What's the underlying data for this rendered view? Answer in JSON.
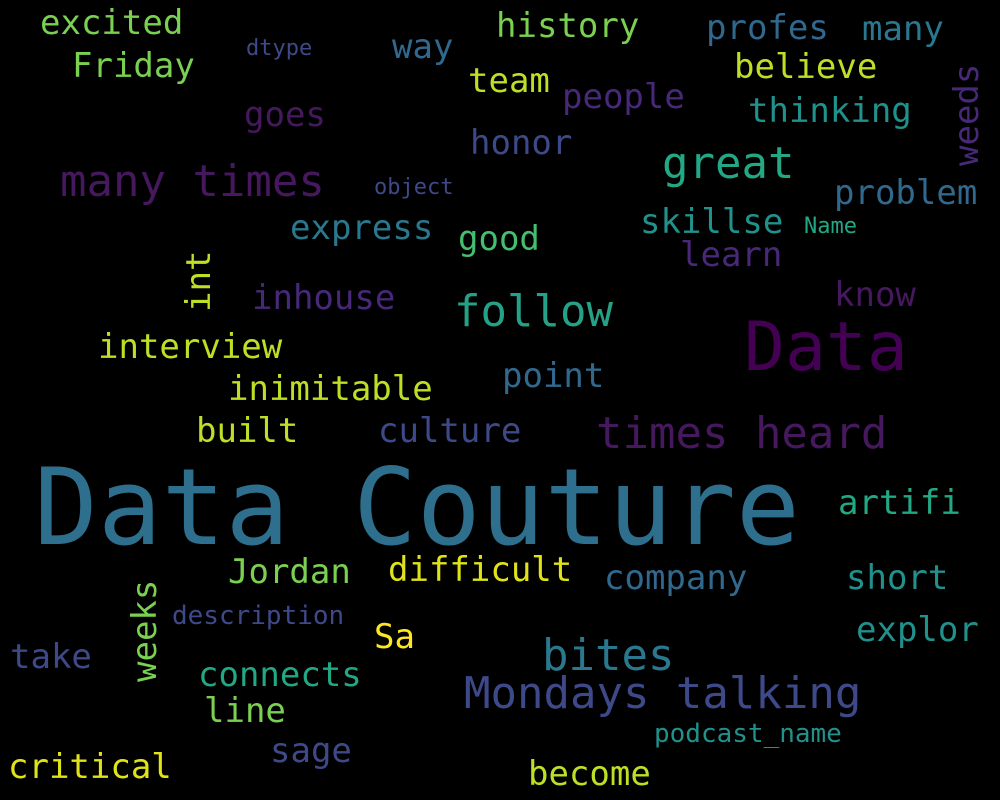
{
  "colors": {
    "background": "#000000",
    "teal_dark": "#2e6f8e",
    "teal": "#2a788e",
    "teal_light": "#21918c",
    "green": "#22a884",
    "green_light": "#44bf70",
    "lime": "#7ad151",
    "yellow_green": "#bddf26",
    "yellow": "#fde725",
    "purple_dark": "#440154",
    "purple": "#482878",
    "indigo": "#3e4989",
    "blue": "#31688e"
  },
  "words": {
    "data_couture": "Data Couture",
    "data": "Data",
    "mondays_talking": "Mondays talking",
    "many_times": "many times",
    "times_heard": "times heard",
    "great": "great",
    "follow": "follow",
    "bites": "bites",
    "history": "history",
    "profes": "profes",
    "many": "many",
    "excited": "excited",
    "friday": "Friday",
    "dtype": "dtype",
    "way": "way",
    "team": "team",
    "believe": "believe",
    "people": "people",
    "goes": "goes",
    "thinking": "thinking",
    "weeds": "weeds",
    "honor": "honor",
    "problem": "problem",
    "object": "object",
    "express": "express",
    "good": "good",
    "skillse": "skillse",
    "name": "Name",
    "learn": "learn",
    "int": "int",
    "inhouse": "inhouse",
    "know": "know",
    "interview": "interview",
    "point": "point",
    "inimitable": "inimitable",
    "built": "built",
    "culture": "culture",
    "artifi": "artifi",
    "jordan": "Jordan",
    "difficult": "difficult",
    "company": "company",
    "short": "short",
    "weeks": "weeks",
    "description": "description",
    "sa": "Sa",
    "explor": "explor",
    "take": "take",
    "connects": "connects",
    "line": "line",
    "sage": "sage",
    "podcast_name": "podcast_name",
    "critical": "critical",
    "become": "become"
  }
}
